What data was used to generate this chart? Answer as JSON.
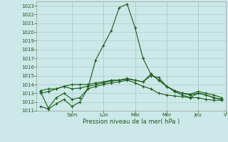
{
  "xlabel": "Pression niveau de la mer( hPa )",
  "ylim": [
    1011,
    1023.5
  ],
  "yticks": [
    1011,
    1012,
    1013,
    1014,
    1015,
    1016,
    1017,
    1018,
    1019,
    1020,
    1021,
    1022,
    1023
  ],
  "day_labels": [
    "Sam",
    "Lun",
    "Mar",
    "Mer",
    "Jeu",
    "V"
  ],
  "background_color": "#cce8e8",
  "grid_color": "#aacccc",
  "line_color": "#1a5c1a",
  "series": [
    [
      1011.5,
      1011.2,
      1011.8,
      1012.3,
      1011.5,
      1012.0,
      1013.5,
      1016.8,
      1018.5,
      1020.2,
      1022.8,
      1023.2,
      1020.5,
      1017.0,
      1015.2,
      1014.5,
      1013.8,
      1013.2,
      1012.8,
      1012.5,
      1012.5,
      1012.3,
      1012.2,
      1012.2
    ],
    [
      1013.2,
      1011.3,
      1012.5,
      1013.0,
      1012.3,
      1012.5,
      1013.5,
      1013.8,
      1014.0,
      1014.2,
      1014.3,
      1014.5,
      1014.2,
      1013.8,
      1013.5,
      1013.0,
      1012.8,
      1012.7,
      1012.6,
      1012.5,
      1013.0,
      1012.8,
      1012.5,
      1012.3
    ],
    [
      1013.3,
      1013.5,
      1013.5,
      1013.8,
      1013.5,
      1013.6,
      1013.8,
      1014.0,
      1014.2,
      1014.4,
      1014.5,
      1014.6,
      1014.5,
      1014.3,
      1015.2,
      1014.5,
      1013.8,
      1013.3,
      1013.0,
      1012.8,
      1013.0,
      1012.8,
      1012.5,
      1012.3
    ],
    [
      1013.0,
      1013.2,
      1013.5,
      1013.8,
      1014.0,
      1014.0,
      1014.0,
      1014.2,
      1014.3,
      1014.5,
      1014.5,
      1014.7,
      1014.5,
      1014.3,
      1015.0,
      1014.8,
      1013.8,
      1013.3,
      1013.0,
      1012.9,
      1013.2,
      1013.0,
      1012.8,
      1012.5
    ]
  ],
  "n_points": 24,
  "day_x_positions": [
    4,
    8,
    12,
    16,
    20,
    23.5
  ],
  "day_tick_x": [
    4,
    8,
    12,
    16,
    20,
    23.5
  ]
}
